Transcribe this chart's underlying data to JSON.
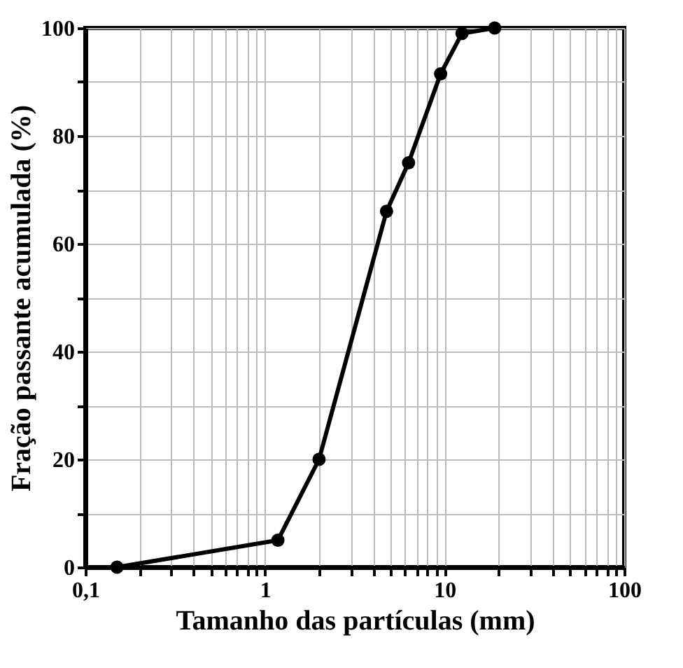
{
  "chart_data": {
    "type": "line",
    "xlabel": "Tamanho das partículas (mm)",
    "ylabel": "Fração passante acumulada (%)",
    "log": "x",
    "grid": true,
    "marker": "circle",
    "line_style": "solid",
    "xlim": [
      0.1,
      100
    ],
    "ylim": [
      0,
      100
    ],
    "xticks": [
      {
        "value": 0.1,
        "label": "0,1"
      },
      {
        "value": 0.2,
        "label": null
      },
      {
        "value": 0.3,
        "label": null
      },
      {
        "value": 0.4,
        "label": null
      },
      {
        "value": 0.5,
        "label": null
      },
      {
        "value": 0.6,
        "label": null
      },
      {
        "value": 0.7,
        "label": null
      },
      {
        "value": 0.8,
        "label": null
      },
      {
        "value": 0.9,
        "label": null
      },
      1,
      {
        "value": 2,
        "label": null
      },
      {
        "value": 3,
        "label": null
      },
      {
        "value": 4,
        "label": null
      },
      {
        "value": 5,
        "label": null
      },
      {
        "value": 6,
        "label": null
      },
      {
        "value": 7,
        "label": null
      },
      {
        "value": 8,
        "label": null
      },
      {
        "value": 9,
        "label": null
      },
      10,
      {
        "value": 20,
        "label": null
      },
      {
        "value": 30,
        "label": null
      },
      {
        "value": 40,
        "label": null
      },
      {
        "value": 50,
        "label": null
      },
      {
        "value": 60,
        "label": null
      },
      {
        "value": 70,
        "label": null
      },
      {
        "value": 80,
        "label": null
      },
      {
        "value": 90,
        "label": null
      },
      100
    ],
    "yticks": [
      0,
      {
        "value": 10,
        "label": null
      },
      20,
      {
        "value": 30,
        "label": null
      },
      40,
      {
        "value": 50,
        "label": null
      },
      60,
      {
        "value": 70,
        "label": null
      },
      80,
      {
        "value": 90,
        "label": null
      },
      100
    ],
    "x": [
      0.15,
      1.18,
      2,
      4.75,
      6.3,
      9.5,
      12.5,
      19
    ],
    "series": [
      {
        "color": "#000000",
        "values": [
          0,
          5,
          20,
          66,
          75,
          91.5,
          99,
          100
        ]
      }
    ]
  }
}
